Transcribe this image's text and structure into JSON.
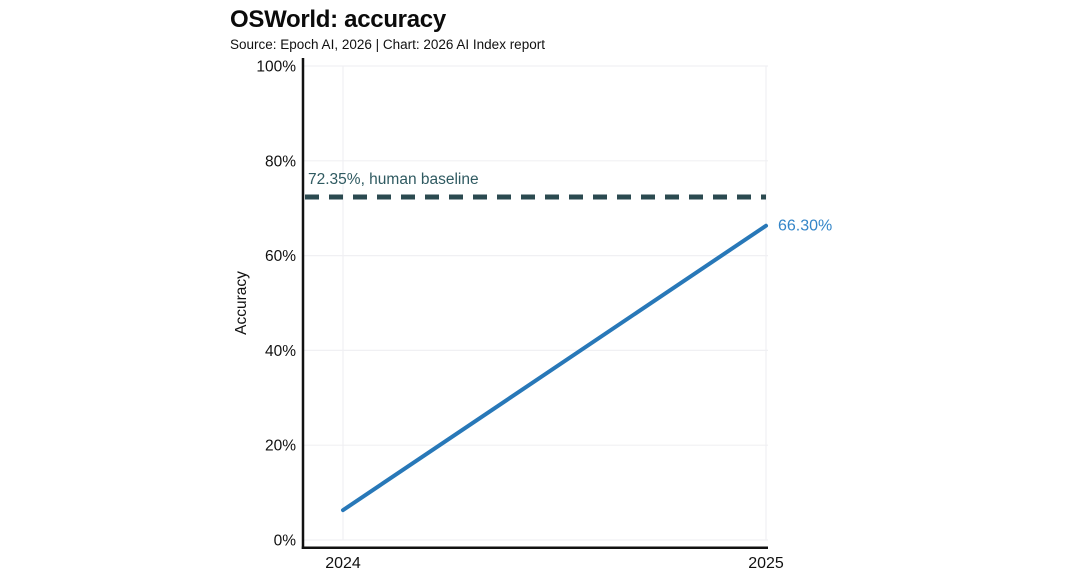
{
  "chart_data": {
    "type": "line",
    "title": "OSWorld: accuracy",
    "subtitle": "Source: Epoch AI, 2026 | Chart: 2026 AI Index report",
    "ylabel": "Accuracy",
    "xlabel": "",
    "x": [
      2024,
      2025
    ],
    "series": [
      {
        "name": "OSWorld accuracy",
        "values": [
          6.3,
          66.3
        ]
      }
    ],
    "baseline": {
      "value": 72.35,
      "label": "72.35%, human baseline"
    },
    "end_label": "66.30%",
    "ylim": [
      0,
      100
    ],
    "yticks": [
      0,
      20,
      40,
      60,
      80,
      100
    ],
    "ytick_labels": [
      "0%",
      "20%",
      "40%",
      "60%",
      "80%",
      "100%"
    ],
    "xtick_labels": [
      "2024",
      "2025"
    ],
    "grid": true,
    "legend": "none",
    "colors": {
      "line": "#2878B8",
      "end_label": "#3385C8",
      "baseline": "#2B4A50",
      "baseline_label": "#2F5A61",
      "axis": "#111111",
      "text": "#111111",
      "grid": "#F0F0F3",
      "background": "#FFFFFF"
    }
  }
}
